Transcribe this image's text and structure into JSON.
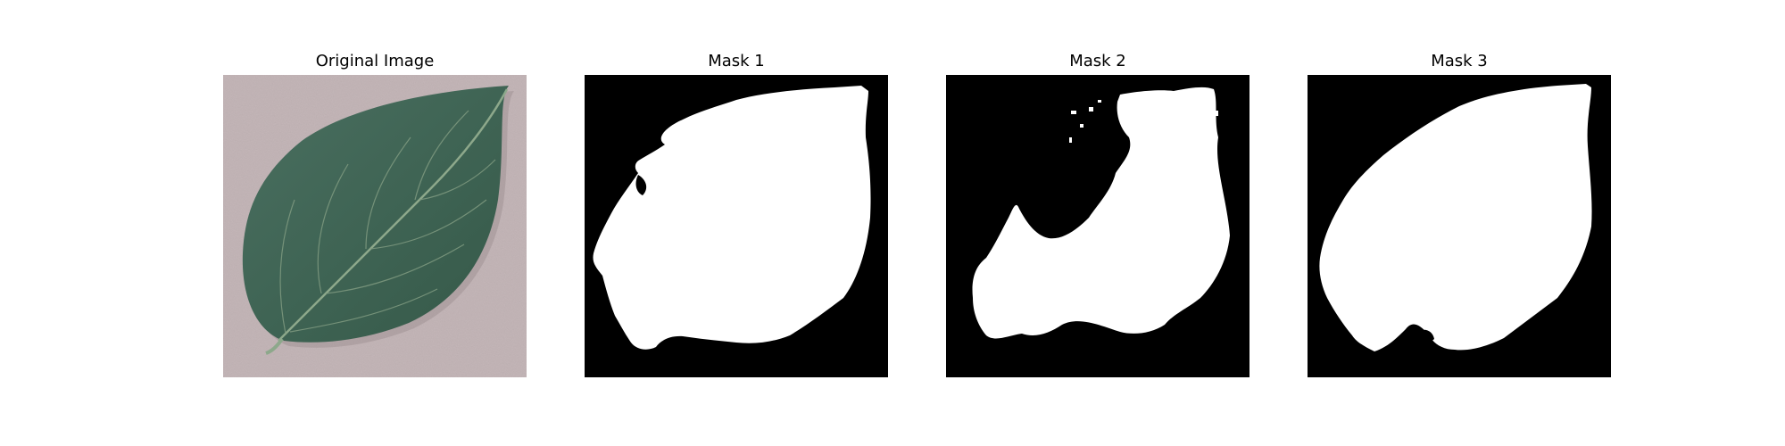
{
  "figure": {
    "panels": [
      {
        "title": "Original Image",
        "kind": "photo",
        "subject": "leaf"
      },
      {
        "title": "Mask 1",
        "kind": "mask"
      },
      {
        "title": "Mask 2",
        "kind": "mask"
      },
      {
        "title": "Mask 3",
        "kind": "mask"
      }
    ]
  },
  "colors": {
    "background": "#c4b6b8",
    "leaf": "#3f6454",
    "vein": "#8da88b",
    "mask_fg": "#ffffff",
    "mask_bg": "#000000"
  }
}
